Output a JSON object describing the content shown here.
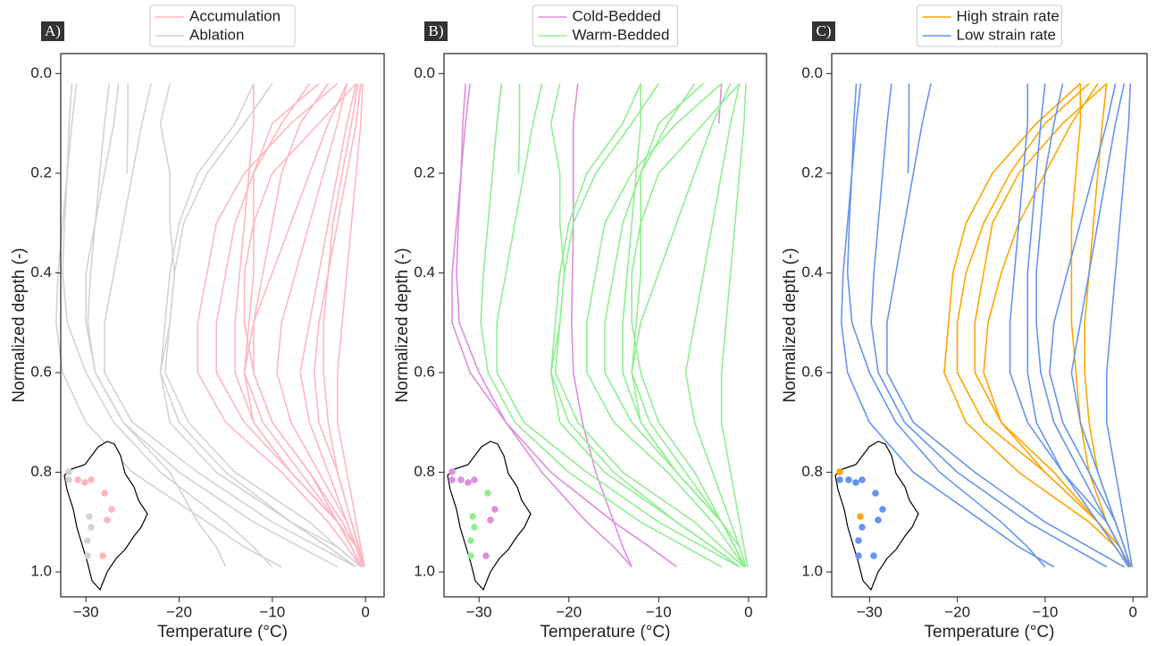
{
  "chart_data": [
    {
      "type": "line",
      "panel": "A)",
      "xlabel": "Temperature (°C)",
      "ylabel": "Normalized depth (-)",
      "xlim": [
        -32.7,
        2
      ],
      "ylim": [
        -0.04,
        1.05
      ],
      "invert_y": true,
      "xticks": [
        {
          "value": -30,
          "label": "−30"
        },
        {
          "value": -20,
          "label": "−20"
        },
        {
          "value": -10,
          "label": "−10"
        },
        0
      ],
      "yticks": [
        {
          "value": 0,
          "label": "0.0"
        },
        0.2,
        0.4,
        0.6,
        0.8,
        {
          "value": 1,
          "label": "1.0"
        }
      ],
      "depth": [
        0.02,
        0.1,
        0.2,
        0.3,
        0.4,
        0.5,
        0.6,
        0.7,
        0.8,
        0.9,
        0.95,
        0.99
      ],
      "series": [
        {
          "name": "Accumulation",
          "color": "#ffb6c1",
          "profiles": [
            [
              -3,
              -8,
              -13,
              -16,
              -17,
              -18,
              -18,
              -15,
              -9,
              -4,
              -2,
              -0.5
            ],
            [
              -5,
              -10,
              -12,
              -12,
              -12,
              -12.5,
              -13,
              -12,
              -8,
              -3,
              -1.5,
              -0.5
            ],
            [
              -2,
              -4,
              -6,
              -8,
              -10,
              -12,
              -13,
              -11,
              -7,
              -3,
              -1,
              -0.3
            ],
            [
              -1,
              -5,
              -10,
              -12,
              -13,
              -13,
              -12,
              -10,
              -6,
              -3,
              -1.5,
              -0.5
            ],
            [
              -1,
              -2,
              -3,
              -4,
              -5,
              -6,
              -7,
              -6,
              -4,
              -2,
              -1,
              -0.3
            ],
            [
              -0.5,
              -1,
              -2,
              -3,
              -4,
              -5,
              -5.5,
              -5,
              -3,
              -1.5,
              -0.8,
              -0.2
            ],
            [
              -12,
              -12,
              -12.5,
              -13,
              -13.5,
              -14,
              -14,
              -12,
              -8,
              -3,
              -1.5,
              -0.5
            ],
            [
              -4,
              -7,
              -9,
              -10,
              -11,
              -12,
              -12,
              -10,
              -6,
              -2.5,
              -1,
              -0.3
            ],
            [
              -0.3,
              -0.5,
              -1,
              -1.5,
              -2,
              -2.5,
              -3,
              -3,
              -2,
              -1,
              -0.5,
              -0.1
            ],
            [
              -2,
              -3,
              -4.5,
              -6,
              -7.5,
              -9,
              -9.5,
              -8,
              -5,
              -2,
              -1,
              -0.3
            ],
            [
              -6,
              -9,
              -12,
              -14,
              -15,
              -16,
              -16,
              -13,
              -8,
              -3,
              -1.5,
              -0.4
            ],
            [
              -0.8,
              -1.5,
              -2.5,
              -3.5,
              -4,
              -4.5,
              -4.5,
              -4,
              -3,
              -1.5,
              -0.7,
              -0.2
            ]
          ]
        },
        {
          "name": "Ablation",
          "color": "#d3d3d3",
          "profiles": [
            [
              -31,
              -31.5,
              -32,
              -32.5,
              -33,
              -33.2,
              -32.5,
              -30,
              -25,
              -17,
              -13,
              -9
            ],
            [
              -31.5,
              -31.8,
              -32,
              -32.3,
              -32.5,
              -32,
              -30,
              -27,
              -22,
              -15,
              -12,
              -10
            ],
            [
              -27.5,
              -28,
              -28.5,
              -29,
              -29.5,
              -29.8,
              -29,
              -26,
              -20,
              -12,
              -7,
              -3
            ],
            [
              -23,
              -24,
              -25,
              -26,
              -27,
              -28,
              -28,
              -25,
              -18,
              -10,
              -5,
              -1
            ],
            [
              -25.5,
              -25.5,
              -25.6,
              null,
              null,
              null,
              null,
              null,
              null,
              null,
              null,
              null
            ],
            [
              -21,
              -22,
              -21,
              -21,
              -20.5,
              -21,
              -22,
              -21,
              -16,
              -8,
              -4,
              -1
            ],
            [
              -12,
              -14,
              -18,
              -20,
              -21,
              -21.5,
              -22,
              -20,
              -15,
              -8,
              -4,
              -1
            ],
            [
              -10,
              -13,
              -17,
              -19.5,
              -20.5,
              -21,
              -21.5,
              -19,
              -14,
              -6,
              -3,
              -0.5
            ],
            [
              null,
              null,
              null,
              null,
              null,
              null,
              null,
              null,
              -16,
              -8,
              -3,
              -0.5
            ],
            [
              -26.5,
              -27,
              -28,
              -29,
              -30,
              -30,
              -29,
              -26,
              -21,
              -18,
              -16,
              -15
            ]
          ]
        }
      ]
    },
    {
      "type": "line",
      "panel": "B)",
      "xlabel": "Temperature (°C)",
      "ylabel": "Normalized depth (-)",
      "xlim": [
        -33.9,
        2
      ],
      "ylim": [
        -0.04,
        1.05
      ],
      "invert_y": true,
      "xticks": [
        {
          "value": -30,
          "label": "−30"
        },
        {
          "value": -20,
          "label": "−20"
        },
        {
          "value": -10,
          "label": "−10"
        },
        0
      ],
      "yticks": [
        {
          "value": 0,
          "label": "0.0"
        },
        0.2,
        0.4,
        0.6,
        0.8,
        {
          "value": 1,
          "label": "1.0"
        }
      ],
      "depth": [
        0.02,
        0.1,
        0.2,
        0.3,
        0.4,
        0.5,
        0.6,
        0.7,
        0.8,
        0.9,
        0.95,
        0.99
      ],
      "series": [
        {
          "name": "Cold-Bedded",
          "color": "#dd8ee0",
          "profiles": [
            [
              -31.5,
              -31.8,
              -32,
              -32.3,
              -32.5,
              -32.2,
              -30,
              -27,
              -22,
              -15,
              -11,
              -8
            ],
            [
              -31,
              -31.5,
              -32,
              -32.5,
              -33,
              -33,
              -31,
              -27,
              -23,
              -18,
              -15,
              -13
            ],
            [
              -19,
              -19.5,
              -19.5,
              -19.5,
              -19.6,
              -19.7,
              -19.5,
              -18.5,
              -17,
              -15,
              -14,
              -13
            ],
            [
              -27.5,
              -28,
              null,
              null,
              null,
              null,
              null,
              null,
              null,
              null,
              null,
              null
            ],
            [
              -3,
              -3.3,
              null,
              null,
              null,
              null,
              null,
              null,
              null,
              null,
              null,
              null
            ]
          ]
        },
        {
          "name": "Warm-Bedded",
          "color": "#90ee90",
          "profiles": [
            [
              -3,
              -8,
              -13,
              -16,
              -17,
              -18,
              -18,
              -15,
              -9,
              -4,
              -2,
              -0.5
            ],
            [
              -5,
              -10,
              -12,
              -12,
              -12,
              -12.5,
              -13,
              -12,
              -8,
              -3,
              -1.5,
              -0.5
            ],
            [
              -2,
              -4,
              -6,
              -8,
              -10,
              -12,
              -13,
              -11,
              -7,
              -3,
              -1,
              -0.3
            ],
            [
              -1,
              -5,
              -10,
              -12,
              -13,
              -13,
              -12,
              -10,
              -6,
              -3,
              -1.5,
              -0.5
            ],
            [
              -1,
              -2,
              -3,
              -4,
              -5,
              -6,
              -7,
              -6,
              -4,
              -2,
              -1,
              -0.3
            ],
            [
              -12,
              -12,
              -12.5,
              -13,
              -13.5,
              -14,
              -14,
              -12,
              -8,
              -3,
              -1.5,
              -0.5
            ],
            [
              -0.3,
              -0.5,
              -1,
              -1.5,
              -2,
              -2.5,
              -3,
              -3,
              -2,
              -1,
              -0.5,
              -0.1
            ],
            [
              -6,
              -9,
              -12,
              -14,
              -15,
              -16,
              -16,
              -13,
              -8,
              -3,
              -1.5,
              -0.4
            ],
            [
              -27.5,
              -28,
              -28.5,
              -29,
              -29.5,
              -29.8,
              -29,
              -26,
              -20,
              -12,
              -7,
              -3
            ],
            [
              -23,
              -24,
              -25,
              -26,
              -27,
              -28,
              -28,
              -25,
              -18,
              -10,
              -5,
              -1
            ],
            [
              -21,
              -22,
              -21,
              -21,
              -20.5,
              -21,
              -22,
              -21,
              -16,
              -8,
              -4,
              -1
            ],
            [
              -12,
              -14,
              -18,
              -20,
              -21,
              -21.5,
              -22,
              -20,
              -15,
              -8,
              -4,
              -1
            ],
            [
              -10,
              -13,
              -17,
              -19.5,
              -20.5,
              -21,
              -21.5,
              -19,
              -14,
              -6,
              -3,
              -0.5
            ],
            [
              -25.5,
              -25.5,
              -25.6,
              null,
              null,
              null,
              null,
              null,
              null,
              null,
              null,
              null
            ]
          ]
        }
      ]
    },
    {
      "type": "line",
      "panel": "C)",
      "xlabel": "Temperature (°C)",
      "ylabel": "Normalized depth (-)",
      "xlim": [
        -34.3,
        1.6
      ],
      "ylim": [
        -0.04,
        1.05
      ],
      "invert_y": true,
      "xticks": [
        {
          "value": -30,
          "label": "−30"
        },
        {
          "value": -20,
          "label": "−20"
        },
        {
          "value": -10,
          "label": "−10"
        },
        0
      ],
      "yticks": [
        {
          "value": 0,
          "label": "0.0"
        },
        0.2,
        0.4,
        0.6,
        0.8,
        {
          "value": 1,
          "label": "1.0"
        }
      ],
      "depth": [
        0.02,
        0.1,
        0.2,
        0.3,
        0.4,
        0.5,
        0.6,
        0.7,
        0.8,
        0.9,
        0.95,
        0.99
      ],
      "series": [
        {
          "name": "High strain rate",
          "color": "#ffa500",
          "profiles": [
            [
              -3,
              -8,
              -13,
              -16,
              -17,
              -18,
              -18,
              -15,
              -9,
              -4,
              -2,
              -0.5
            ],
            [
              -6,
              -11,
              -16,
              -19,
              -20.5,
              -21,
              -21.5,
              -19,
              -13,
              -5,
              -2,
              -0.5
            ],
            [
              -5,
              -10,
              -14,
              -17,
              -19,
              -20,
              -20,
              -17,
              -10,
              -4,
              -1.5,
              -0.4
            ],
            [
              -4,
              -7,
              -10,
              -13,
              -15,
              -16.5,
              -17,
              -15,
              -10,
              -4,
              -1.5,
              -0.3
            ],
            [
              -6,
              -6,
              -6.5,
              -7,
              -7,
              -7,
              -6.5,
              -6,
              -5,
              -3,
              -1.5,
              -0.5
            ],
            [
              -3,
              -3.5,
              -4,
              -4.5,
              -5,
              -5.5,
              -5.5,
              -5,
              -4,
              -2,
              -1,
              -0.2
            ]
          ]
        },
        {
          "name": "Low strain rate",
          "color": "#6495ed",
          "profiles": [
            [
              -31,
              -31.5,
              -32,
              -32.5,
              -33,
              -33.2,
              -32.5,
              -30,
              -25,
              -17,
              -13,
              -9
            ],
            [
              -31.5,
              -31.8,
              -32,
              -32.3,
              -32.5,
              -32,
              -30,
              -27,
              -22,
              -15,
              -12,
              -10
            ],
            [
              -27.5,
              -28,
              -28.5,
              -29,
              -29.5,
              -29.8,
              -29,
              -26,
              -20,
              -12,
              -7,
              -3
            ],
            [
              -23,
              -24,
              -25,
              -26,
              -27,
              -28,
              -28,
              -25,
              -18,
              -10,
              -5,
              -1
            ],
            [
              -25.5,
              -25.5,
              -25.6,
              null,
              null,
              null,
              null,
              null,
              null,
              null,
              null,
              null
            ],
            [
              -12,
              -12,
              -12.5,
              -13,
              -13.5,
              -14,
              -14,
              -12,
              -8,
              -3,
              -1.5,
              -0.5
            ],
            [
              -10,
              -10.5,
              -11,
              -11.5,
              -12,
              -12,
              -12,
              -11,
              -8,
              -4,
              -2,
              -0.5
            ],
            [
              -1,
              -2,
              -3,
              -4,
              -5,
              -6,
              -7,
              -6,
              -4,
              -2,
              -1,
              -0.3
            ],
            [
              -0.3,
              -0.5,
              -1,
              -1.5,
              -2,
              -2.5,
              -3,
              -3,
              -2,
              -1,
              -0.5,
              -0.1
            ],
            [
              -2,
              -3,
              -4.5,
              -6,
              -7.5,
              -9,
              -9.5,
              -8,
              -5,
              -2,
              -1,
              -0.3
            ],
            [
              -8,
              -9,
              -10,
              -10.5,
              -11,
              -11,
              -10.5,
              -9,
              -6,
              -3,
              -1.5,
              -0.4
            ]
          ]
        }
      ]
    }
  ]
}
